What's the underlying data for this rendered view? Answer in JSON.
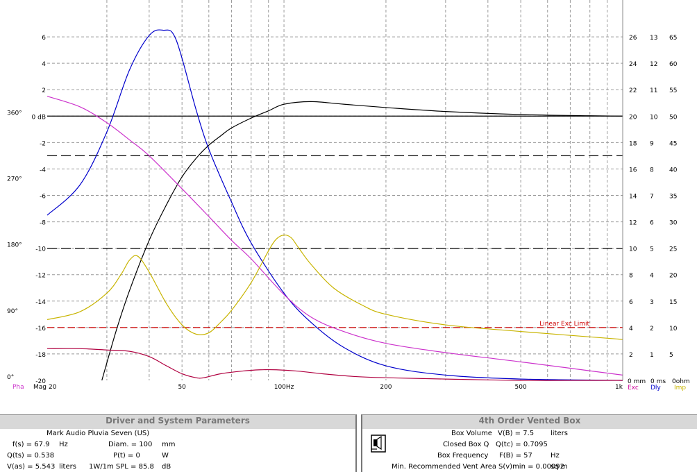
{
  "chart_data": {
    "type": "line",
    "x_scale": "log",
    "xlim": [
      20,
      1000
    ],
    "x_ticks": [
      {
        "value": 20,
        "label": "20"
      },
      {
        "value": 50,
        "label": "50"
      },
      {
        "value": 100,
        "label": "100Hz"
      },
      {
        "value": 200,
        "label": "200"
      },
      {
        "value": 500,
        "label": "500"
      },
      {
        "value": 1000,
        "label": "1k"
      }
    ],
    "x_minor_gridlines": [
      30,
      40,
      60,
      70,
      80,
      90,
      300,
      400,
      600,
      700,
      800,
      900
    ],
    "mag_axis": {
      "ylim": [
        -20,
        8
      ],
      "ticks": [
        {
          "value": 6,
          "label": "6"
        },
        {
          "value": 4,
          "label": "4"
        },
        {
          "value": 2,
          "label": "2"
        },
        {
          "value": 0,
          "label": "0 dB"
        },
        {
          "value": -2,
          "label": "-2"
        },
        {
          "value": -4,
          "label": "-4"
        },
        {
          "value": -6,
          "label": "-6"
        },
        {
          "value": -8,
          "label": "-8"
        },
        {
          "value": -10,
          "label": "-10"
        },
        {
          "value": -12,
          "label": "-12"
        },
        {
          "value": -14,
          "label": "-14"
        },
        {
          "value": -16,
          "label": "-16"
        },
        {
          "value": -18,
          "label": "-18"
        },
        {
          "value": -20,
          "label": "-20"
        }
      ]
    },
    "phase_axis": {
      "ticks": [
        {
          "value": 360,
          "label": "360°"
        },
        {
          "value": 270,
          "label": "270°"
        },
        {
          "value": 180,
          "label": "180°"
        },
        {
          "value": 90,
          "label": "90°"
        },
        {
          "value": 0,
          "label": "0°"
        }
      ]
    },
    "right_axes": [
      {
        "name": "Exc",
        "color": "#cc0099",
        "unit_label": "0 mm",
        "ticks": [
          {
            "value": 26,
            "label": "26"
          },
          {
            "value": 24,
            "label": "24"
          },
          {
            "value": 22,
            "label": "22"
          },
          {
            "value": 20,
            "label": "20"
          },
          {
            "value": 18,
            "label": "18"
          },
          {
            "value": 16,
            "label": "16"
          },
          {
            "value": 14,
            "label": "14"
          },
          {
            "value": 12,
            "label": "12"
          },
          {
            "value": 10,
            "label": "10"
          },
          {
            "value": 8,
            "label": "8"
          },
          {
            "value": 6,
            "label": "6"
          },
          {
            "value": 4,
            "label": "4"
          },
          {
            "value": 2,
            "label": "2"
          }
        ]
      },
      {
        "name": "Dly",
        "color": "#0000cc",
        "unit_label": "0 ms",
        "ticks": [
          {
            "value": 13,
            "label": "13"
          },
          {
            "value": 12,
            "label": "12"
          },
          {
            "value": 11,
            "label": "11"
          },
          {
            "value": 10,
            "label": "10"
          },
          {
            "value": 9,
            "label": "9"
          },
          {
            "value": 8,
            "label": "8"
          },
          {
            "value": 7,
            "label": "7"
          },
          {
            "value": 6,
            "label": "6"
          },
          {
            "value": 5,
            "label": "5"
          },
          {
            "value": 4,
            "label": "4"
          },
          {
            "value": 3,
            "label": "3"
          },
          {
            "value": 2,
            "label": "2"
          },
          {
            "value": 1,
            "label": "1"
          }
        ]
      },
      {
        "name": "Imp",
        "color": "#c8b400",
        "unit_label": "0ohm",
        "ticks": [
          {
            "value": 65,
            "label": "65"
          },
          {
            "value": 60,
            "label": "60"
          },
          {
            "value": 55,
            "label": "55"
          },
          {
            "value": 50,
            "label": "50"
          },
          {
            "value": 45,
            "label": "45"
          },
          {
            "value": 40,
            "label": "40"
          },
          {
            "value": 35,
            "label": "35"
          },
          {
            "value": 30,
            "label": "30"
          },
          {
            "value": 25,
            "label": "25"
          },
          {
            "value": 20,
            "label": "20"
          },
          {
            "value": 15,
            "label": "15"
          },
          {
            "value": 10,
            "label": "10"
          },
          {
            "value": 5,
            "label": "5"
          }
        ]
      }
    ],
    "left_labels": {
      "phase": "Pha",
      "mag": "Mag"
    },
    "reference_lines": [
      {
        "y": 0,
        "style": "solid",
        "color": "#000000"
      },
      {
        "y": -3,
        "style": "dashed",
        "color": "#000000"
      },
      {
        "y": -10,
        "style": "dashed",
        "color": "#000000"
      },
      {
        "y": -16,
        "style": "dashed",
        "color": "#cc0000",
        "label": "Linear Exc Limit"
      }
    ],
    "series": [
      {
        "key": "magnitude",
        "color": "#000000",
        "x": [
          29,
          32,
          35,
          40,
          45,
          50,
          55,
          60,
          65,
          70,
          80,
          90,
          100,
          120,
          150,
          200,
          300,
          500,
          800,
          1000
        ],
        "y": [
          -20,
          -16.2,
          -13.2,
          -9.4,
          -6.7,
          -4.6,
          -3.2,
          -2.2,
          -1.5,
          -0.9,
          -0.15,
          0.4,
          0.9,
          1.1,
          0.9,
          0.65,
          0.35,
          0.12,
          0.03,
          0
        ]
      },
      {
        "key": "excursion",
        "color": "#0000cc",
        "x": [
          20,
          25,
          30,
          35,
          40,
          44,
          48,
          55,
          60,
          70,
          80,
          100,
          120,
          150,
          200,
          300,
          500,
          1000
        ],
        "y": [
          -7.5,
          -5.2,
          -1.2,
          3.5,
          6.1,
          6.5,
          5.8,
          0.5,
          -2.5,
          -6.5,
          -9.6,
          -13.4,
          -15.6,
          -17.5,
          -18.9,
          -19.6,
          -19.9,
          -20
        ]
      },
      {
        "key": "phase",
        "color": "#cc33cc",
        "x": [
          20,
          25,
          30,
          35,
          40,
          50,
          60,
          70,
          80,
          100,
          120,
          150,
          200,
          300,
          500,
          1000
        ],
        "y": [
          1.5,
          0.7,
          -0.5,
          -1.8,
          -3.0,
          -5.5,
          -7.6,
          -9.4,
          -10.8,
          -13.5,
          -15.2,
          -16.3,
          -17.2,
          -17.9,
          -18.6,
          -19.6
        ]
      },
      {
        "key": "impedance",
        "color": "#c8b400",
        "x": [
          20,
          25,
          30,
          33,
          35,
          37,
          40,
          45,
          50,
          55,
          60,
          65,
          70,
          80,
          90,
          95,
          100,
          105,
          110,
          120,
          140,
          170,
          200,
          300,
          500,
          1000
        ],
        "y": [
          -15.4,
          -14.8,
          -13.4,
          -12.0,
          -10.9,
          -10.6,
          -11.8,
          -14.2,
          -15.8,
          -16.5,
          -16.4,
          -15.6,
          -14.7,
          -12.6,
          -10.2,
          -9.3,
          -9.0,
          -9.2,
          -9.9,
          -11.2,
          -13.0,
          -14.3,
          -15.0,
          -15.8,
          -16.3,
          -16.9
        ]
      },
      {
        "key": "group-delay",
        "color": "#b00040",
        "x": [
          20,
          25,
          30,
          35,
          40,
          45,
          50,
          55,
          58,
          65,
          75,
          85,
          95,
          110,
          130,
          160,
          200,
          300,
          500,
          800,
          1000
        ],
        "y": [
          -17.6,
          -17.6,
          -17.7,
          -17.8,
          -18.2,
          -18.9,
          -19.5,
          -19.8,
          -19.8,
          -19.5,
          -19.3,
          -19.2,
          -19.2,
          -19.3,
          -19.5,
          -19.7,
          -19.8,
          -19.9,
          -20,
          -20,
          -20
        ]
      }
    ]
  },
  "panels": {
    "left": {
      "title": "Driver and System Parameters",
      "driver_name": "Mark Audio Pluvia Seven (US)",
      "rows": [
        {
          "label": "f(s) = 67.9",
          "unit": "Hz",
          "label2": "Diam. = 100",
          "unit2": "mm"
        },
        {
          "label": "Q(ts) = 0.538",
          "unit": "",
          "label2": "P(t) = 0",
          "unit2": "W"
        },
        {
          "label": "V(as) = 5.543",
          "unit": "liters",
          "label2": "1W/1m SPL = 85.8",
          "unit2": "dB"
        }
      ]
    },
    "right": {
      "title": "4th Order Vented Box",
      "rows": [
        {
          "name": "Box Volume",
          "value": "V(B) = 7.5",
          "unit": "liters"
        },
        {
          "name": "Closed Box Q",
          "value": "Q(tc) = 0.7095",
          "unit": ""
        },
        {
          "name": "Box Frequency",
          "value": "F(B) = 57",
          "unit": "Hz"
        },
        {
          "name": "Min. Recommended Vent Area",
          "value": "S(v)min = 0.00092",
          "unit": "sq m"
        }
      ]
    }
  }
}
